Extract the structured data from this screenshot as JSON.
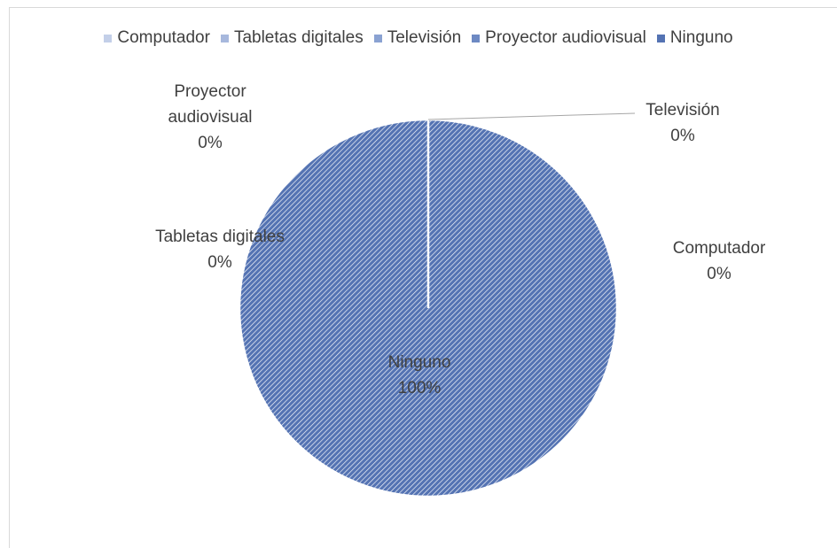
{
  "chart_data": {
    "type": "pie",
    "categories": [
      "Computador",
      "Tabletas digitales",
      "Televisión",
      "Proyector audiovisual",
      "Ninguno"
    ],
    "values": [
      0,
      0,
      0,
      0,
      100
    ],
    "value_labels": [
      "0%",
      "0%",
      "0%",
      "0%",
      "100%"
    ],
    "colors": [
      "#c3cfe8",
      "#a7b8dd",
      "#8aa2d2",
      "#6d89c3",
      "#5473b3"
    ],
    "legend": "top"
  }
}
